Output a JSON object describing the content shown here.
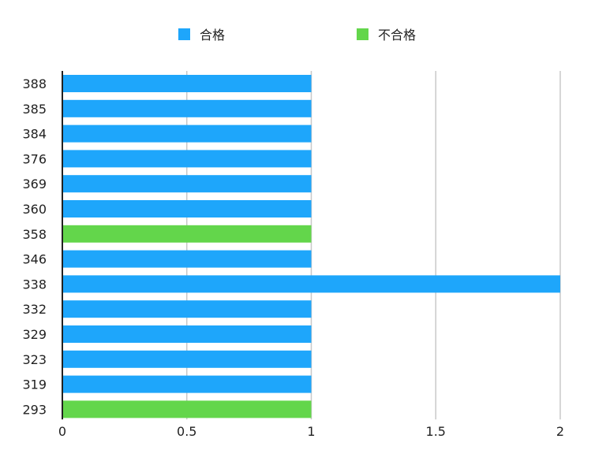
{
  "chart_data": {
    "type": "bar",
    "orientation": "horizontal",
    "categories": [
      "388",
      "385",
      "384",
      "376",
      "369",
      "360",
      "358",
      "346",
      "338",
      "332",
      "329",
      "323",
      "319",
      "293"
    ],
    "values": [
      1,
      1,
      1,
      1,
      1,
      1,
      1,
      1,
      2,
      1,
      1,
      1,
      1,
      1
    ],
    "status": [
      "合格",
      "合格",
      "合格",
      "合格",
      "合格",
      "合格",
      "不合格",
      "合格",
      "合格",
      "合格",
      "合格",
      "合格",
      "合格",
      "不合格"
    ],
    "legend": [
      {
        "name": "合格",
        "color": "#1ea6fb"
      },
      {
        "name": "不合格",
        "color": "#63d64b"
      }
    ],
    "xlim": [
      0,
      2
    ],
    "xticks": [
      0,
      0.5,
      1,
      1.5,
      2
    ],
    "xtick_labels": [
      "0",
      "0.5",
      "1",
      "1.5",
      "2"
    ],
    "grid": true,
    "legend_position": "top",
    "title": "",
    "xlabel": "",
    "ylabel": ""
  },
  "colors": {
    "pass": "#1ea6fb",
    "fail": "#63d64b",
    "grid": "#c8c8c8",
    "axis": "#222222"
  }
}
